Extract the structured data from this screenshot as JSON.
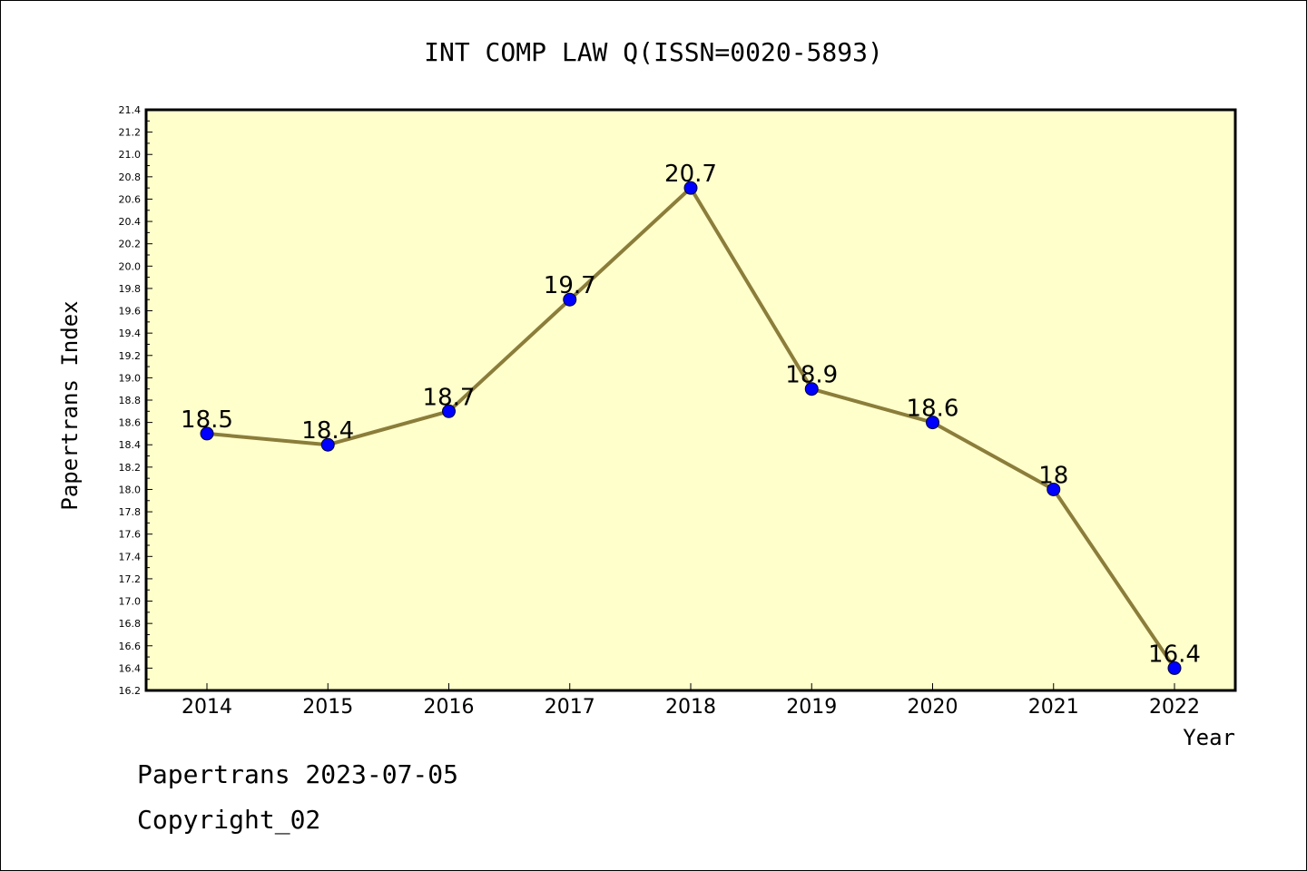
{
  "chart_data": {
    "type": "line",
    "title": "INT COMP LAW Q(ISSN=0020-5893)",
    "xlabel": "Year",
    "ylabel": "Papertrans Index",
    "categories": [
      "2014",
      "2015",
      "2016",
      "2017",
      "2018",
      "2019",
      "2020",
      "2021",
      "2022"
    ],
    "series": [
      {
        "values": [
          18.5,
          18.4,
          18.7,
          19.7,
          20.7,
          18.9,
          18.6,
          18.0,
          16.4
        ]
      }
    ],
    "data_labels": [
      "18.5",
      "18.4",
      "18.7",
      "19.7",
      "20.7",
      "18.9",
      "18.6",
      "18",
      "16.4"
    ],
    "ylim": [
      16.2,
      21.4
    ],
    "yticks": [
      "16.2",
      "16.4",
      "16.6",
      "16.8",
      "17.0",
      "17.2",
      "17.4",
      "17.6",
      "17.8",
      "18.0",
      "18.2",
      "18.4",
      "18.6",
      "18.8",
      "19.0",
      "19.2",
      "19.4",
      "19.6",
      "19.8",
      "20.0",
      "20.2",
      "20.4",
      "20.6",
      "20.8",
      "21.0",
      "21.2",
      "21.4"
    ],
    "grid": false,
    "colors": {
      "plot_background": "#ffffcc",
      "line": "#8b7d3a",
      "marker": "#0000ff"
    }
  },
  "footer": {
    "line1": "Papertrans 2023-07-05",
    "line2": "Copyright_02"
  }
}
